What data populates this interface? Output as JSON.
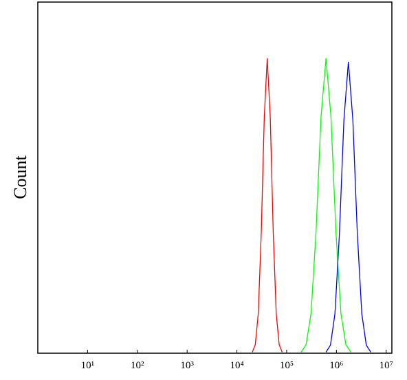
{
  "chart_data": {
    "type": "line",
    "y_label": "Count",
    "x_scale": "log",
    "xlim": [
      1,
      13000000
    ],
    "ylim": [
      0,
      100
    ],
    "xticks": [
      {
        "value": 10,
        "label": "10¹"
      },
      {
        "value": 100,
        "label": "10²"
      },
      {
        "value": 1000,
        "label": "10³"
      },
      {
        "value": 10000,
        "label": "10⁴"
      },
      {
        "value": 100000,
        "label": "10⁵"
      },
      {
        "value": 1000000,
        "label": "10⁶"
      },
      {
        "value": 10000000,
        "label": "10⁷"
      }
    ],
    "series": [
      {
        "color": "#ff0000",
        "x": [
          20400,
          23400,
          26900,
          30900,
          35500,
          40700,
          46800,
          53700,
          61700,
          70800,
          81300
        ],
        "values": [
          0.3,
          2.4,
          11.3,
          34.5,
          67.3,
          84,
          67.3,
          34.5,
          11.3,
          2.4,
          0.3
        ]
      },
      {
        "color": "#00ff00",
        "x": [
          195000,
          245000,
          309000,
          389000,
          490000,
          617000,
          776000,
          977000,
          1230000,
          1549000,
          1950000
        ],
        "values": [
          0.3,
          2.4,
          11.3,
          34.5,
          67.3,
          84,
          67.3,
          34.5,
          11.3,
          2.4,
          0.3
        ]
      },
      {
        "color": "#0000ff",
        "x": [
          617000,
          759000,
          933000,
          1148000,
          1413000,
          1738000,
          2138000,
          2630000,
          3236000,
          3981000,
          4898000
        ],
        "values": [
          0.3,
          2.3,
          11.2,
          34.0,
          66.4,
          83,
          66.4,
          34.0,
          11.2,
          2.3,
          0.3
        ]
      }
    ]
  }
}
